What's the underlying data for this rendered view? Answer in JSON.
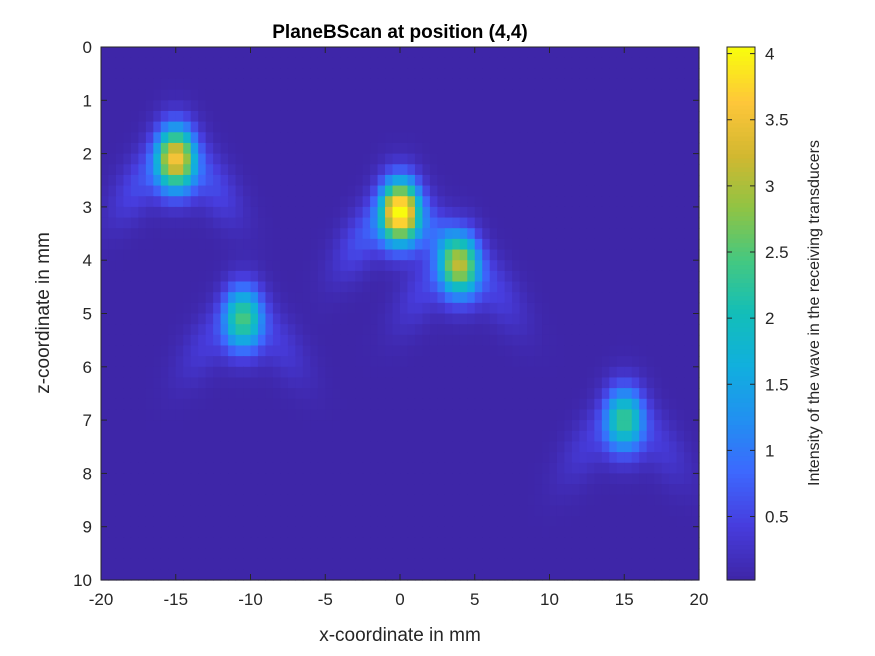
{
  "chart_data": {
    "type": "heatmap",
    "title": "PlaneBScan at position (4,4)",
    "xlabel": "x-coordinate in mm",
    "ylabel": "z-coordinate in mm",
    "xlim": [
      -20,
      20
    ],
    "ylim": [
      0,
      10
    ],
    "y_reversed": true,
    "x_ticks": [
      -20,
      -15,
      -10,
      -5,
      0,
      5,
      10,
      15,
      20
    ],
    "y_ticks": [
      0,
      1,
      2,
      3,
      4,
      5,
      6,
      7,
      8,
      9,
      10
    ],
    "colormap": "parula",
    "background_value": 0.02,
    "colorbar": {
      "label": "Intensity of the wave in the receiving transducers",
      "limits": [
        0.02,
        4.05
      ],
      "ticks": [
        "0.5",
        "1",
        "1.5",
        "2",
        "2.5",
        "3",
        "3.5",
        "4"
      ],
      "tick_values": [
        0.5,
        1,
        1.5,
        2,
        2.5,
        3,
        3.5,
        4
      ]
    },
    "reflectors": [
      {
        "x": -15,
        "z": 2.1,
        "peak": 3.4
      },
      {
        "x": -10.5,
        "z": 5.1,
        "peak": 2.3
      },
      {
        "x": 0,
        "z": 3.1,
        "peak": 4.0
      },
      {
        "x": 4,
        "z": 4.1,
        "peak": 2.7
      },
      {
        "x": 15,
        "z": 7.0,
        "peak": 2.2
      }
    ]
  }
}
